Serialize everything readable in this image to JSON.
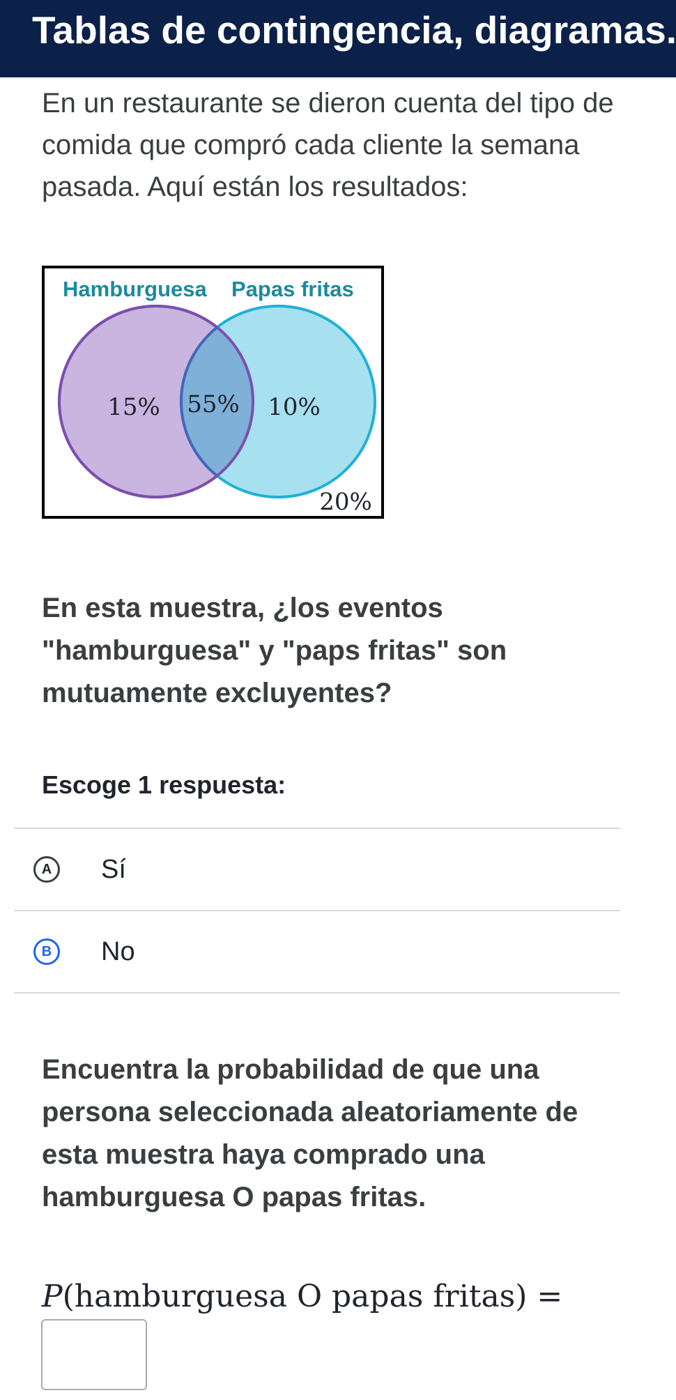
{
  "header": {
    "title": "Tablas de contingencia, diagramas.."
  },
  "intro": {
    "text": "En un restaurante se dieron cuenta del tipo de comida que compró cada cliente la semana pasada. Aquí están los resultados:"
  },
  "venn": {
    "label_left": "Hamburguesa",
    "label_right": "Papas fritas",
    "left_only": "15%",
    "both": "55%",
    "right_only": "10%",
    "outside": "20%",
    "colors": {
      "left_fill": "#c9b5df",
      "left_stroke": "#7c4fae",
      "right_fill": "#a7e0ee",
      "right_stroke": "#1fb1d6",
      "overlap_fill": "#7fb0d8",
      "overlap_stroke": "#4567b8",
      "label_color": "#1b8aa0"
    }
  },
  "question1": {
    "text": "En esta muestra, ¿los eventos \"hamburguesa\" y \"paps fritas\" son mutuamente excluyentes?"
  },
  "choose_label": "Escoge 1 respuesta:",
  "choices": [
    {
      "letter": "A",
      "label": "Sí"
    },
    {
      "letter": "B",
      "label": "No"
    }
  ],
  "question2": {
    "text": "Encuentra la probabilidad de que una persona seleccionada aleatoriamente de esta muestra haya comprado una hamburguesa O papas fritas."
  },
  "probability": {
    "var": "P",
    "expression": "(hamburguesa O papas fritas) ="
  },
  "answer_input": {
    "value": ""
  }
}
